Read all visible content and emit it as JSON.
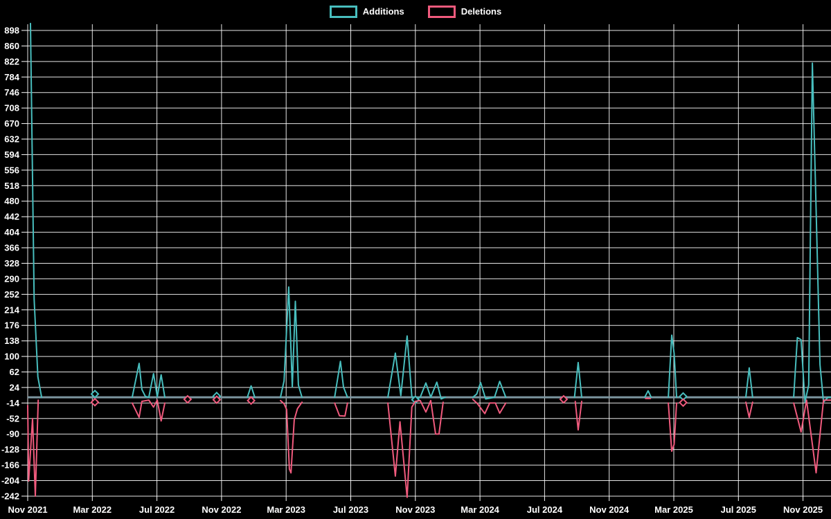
{
  "legend": {
    "items": [
      {
        "label": "Additions",
        "color": "#48bebe"
      },
      {
        "label": "Deletions",
        "color": "#f05a7d"
      }
    ],
    "position": "top"
  },
  "chart_data": {
    "type": "line",
    "title": "",
    "xlabel": "",
    "ylabel": "",
    "background": "#000000",
    "gridline_color": "#ffffff",
    "grid": true,
    "baseline_color": "#7d96a0",
    "text_color": "#ffffff",
    "y_axis": {
      "min": -242,
      "max": 898,
      "step": 38
    },
    "x_axis": {
      "unit": "months_since_first_tick",
      "ticks": [
        {
          "t": 0,
          "label": "Nov 2021"
        },
        {
          "t": 4,
          "label": "Mar 2022"
        },
        {
          "t": 8,
          "label": "Jul 2022"
        },
        {
          "t": 12,
          "label": "Nov 2022"
        },
        {
          "t": 16,
          "label": "Mar 2023"
        },
        {
          "t": 20,
          "label": "Jul 2023"
        },
        {
          "t": 24,
          "label": "Nov 2023"
        },
        {
          "t": 28,
          "label": "Mar 2024"
        },
        {
          "t": 32,
          "label": "Jul 2024"
        },
        {
          "t": 36,
          "label": "Nov 2024"
        },
        {
          "t": 40,
          "label": "Mar 2025"
        },
        {
          "t": 44,
          "label": "Jul 2025"
        },
        {
          "t": 48,
          "label": "Nov 2025"
        }
      ]
    },
    "series": [
      {
        "name": "Additions",
        "color": "#48bebe",
        "segments": [
          [
            [
              0.17,
              915
            ],
            [
              0.4,
              240
            ],
            [
              0.63,
              50
            ],
            [
              0.86,
              0
            ]
          ],
          [
            [
              6.47,
              0
            ],
            [
              6.9,
              83
            ],
            [
              7.07,
              19
            ],
            [
              7.29,
              2
            ],
            [
              7.5,
              0
            ],
            [
              7.79,
              58
            ],
            [
              8.02,
              1
            ],
            [
              8.26,
              55
            ],
            [
              8.49,
              0
            ]
          ],
          [
            [
              13.6,
              0
            ],
            [
              13.83,
              28
            ],
            [
              14.06,
              0
            ]
          ],
          [
            [
              15.65,
              0
            ],
            [
              15.87,
              40
            ],
            [
              16.16,
              270
            ],
            [
              16.38,
              25
            ],
            [
              16.57,
              235
            ],
            [
              16.76,
              30
            ],
            [
              16.98,
              0
            ]
          ],
          [
            [
              19.0,
              0
            ],
            [
              19.36,
              88
            ],
            [
              19.55,
              25
            ],
            [
              19.8,
              0
            ]
          ],
          [
            [
              22.3,
              0
            ],
            [
              22.76,
              108
            ],
            [
              23.1,
              4
            ],
            [
              23.49,
              150
            ],
            [
              23.78,
              2
            ],
            [
              24.0,
              -6
            ],
            [
              24.3,
              0
            ],
            [
              24.65,
              35
            ],
            [
              24.95,
              0
            ],
            [
              25.33,
              37
            ],
            [
              25.6,
              -4
            ],
            [
              25.85,
              0
            ]
          ],
          [
            [
              27.56,
              0
            ],
            [
              27.8,
              8
            ],
            [
              28.04,
              36
            ],
            [
              28.35,
              -4
            ],
            [
              28.9,
              0
            ],
            [
              29.22,
              39
            ],
            [
              29.6,
              0
            ]
          ],
          [
            [
              33.85,
              0
            ],
            [
              34.08,
              85
            ],
            [
              34.3,
              0
            ]
          ],
          [
            [
              38.2,
              0
            ],
            [
              38.41,
              16
            ],
            [
              38.6,
              0
            ]
          ],
          [
            [
              39.66,
              0
            ],
            [
              39.87,
              152
            ],
            [
              40.02,
              107
            ],
            [
              40.17,
              0
            ]
          ],
          [
            [
              44.46,
              0
            ],
            [
              44.67,
              72
            ],
            [
              44.88,
              0
            ]
          ],
          [
            [
              47.42,
              0
            ],
            [
              47.65,
              146
            ],
            [
              47.88,
              141
            ],
            [
              48.12,
              -12
            ],
            [
              48.35,
              30
            ],
            [
              48.58,
              818
            ],
            [
              48.81,
              460
            ],
            [
              49.05,
              80
            ],
            [
              49.27,
              -12
            ],
            [
              49.55,
              0
            ],
            [
              49.7,
              0
            ]
          ]
        ],
        "markers": [
          [
            4.16,
            8
          ],
          [
            11.7,
            3
          ],
          [
            24.0,
            -6
          ],
          [
            40.58,
            2
          ]
        ]
      },
      {
        "name": "Deletions",
        "color": "#f05a7d",
        "segments": [
          [
            [
              0.0,
              -20
            ],
            [
              0.06,
              -205
            ],
            [
              0.3,
              -52
            ],
            [
              0.47,
              -242
            ],
            [
              0.65,
              -7
            ]
          ],
          [
            [
              6.47,
              -14
            ],
            [
              6.9,
              -49
            ],
            [
              7.07,
              -10
            ],
            [
              7.5,
              -7
            ],
            [
              7.79,
              -24
            ],
            [
              8.02,
              -7
            ],
            [
              8.26,
              -58
            ],
            [
              8.49,
              -14
            ]
          ],
          [
            [
              15.65,
              -8
            ],
            [
              15.87,
              -16
            ],
            [
              16.03,
              -30
            ],
            [
              16.2,
              -176
            ],
            [
              16.3,
              -185
            ],
            [
              16.5,
              -55
            ],
            [
              16.7,
              -28
            ],
            [
              16.98,
              -12
            ]
          ],
          [
            [
              19.0,
              -14
            ],
            [
              19.3,
              -45
            ],
            [
              19.64,
              -46
            ],
            [
              19.8,
              -14
            ]
          ],
          [
            [
              22.3,
              -14
            ],
            [
              22.76,
              -193
            ],
            [
              23.05,
              -60
            ],
            [
              23.49,
              -245
            ],
            [
              23.78,
              -24
            ],
            [
              24.0,
              -10
            ],
            [
              24.3,
              -8
            ],
            [
              24.65,
              -36
            ],
            [
              24.95,
              -8
            ],
            [
              25.25,
              -90
            ],
            [
              25.46,
              -90
            ],
            [
              25.72,
              -12
            ]
          ],
          [
            [
              27.56,
              -5
            ],
            [
              27.85,
              -16
            ],
            [
              28.3,
              -40
            ],
            [
              28.6,
              -14
            ],
            [
              28.95,
              -14
            ],
            [
              29.22,
              -39
            ],
            [
              29.6,
              -14
            ]
          ],
          [
            [
              33.9,
              -10
            ],
            [
              34.08,
              -80
            ],
            [
              34.3,
              -10
            ]
          ],
          [
            [
              38.25,
              -3
            ],
            [
              38.55,
              -3
            ]
          ],
          [
            [
              39.66,
              -14
            ],
            [
              39.87,
              -132
            ],
            [
              40.02,
              -115
            ],
            [
              40.17,
              -14
            ]
          ],
          [
            [
              44.46,
              -12
            ],
            [
              44.67,
              -49
            ],
            [
              44.88,
              -12
            ]
          ],
          [
            [
              47.42,
              -14
            ],
            [
              47.88,
              -85
            ],
            [
              48.22,
              -7
            ],
            [
              48.81,
              -185
            ],
            [
              49.27,
              -7
            ],
            [
              49.7,
              -7
            ]
          ]
        ],
        "markers": [
          [
            4.16,
            -12
          ],
          [
            9.9,
            -5
          ],
          [
            11.7,
            -6
          ],
          [
            13.83,
            -8
          ],
          [
            33.18,
            -5
          ],
          [
            40.58,
            -13
          ]
        ]
      }
    ]
  }
}
